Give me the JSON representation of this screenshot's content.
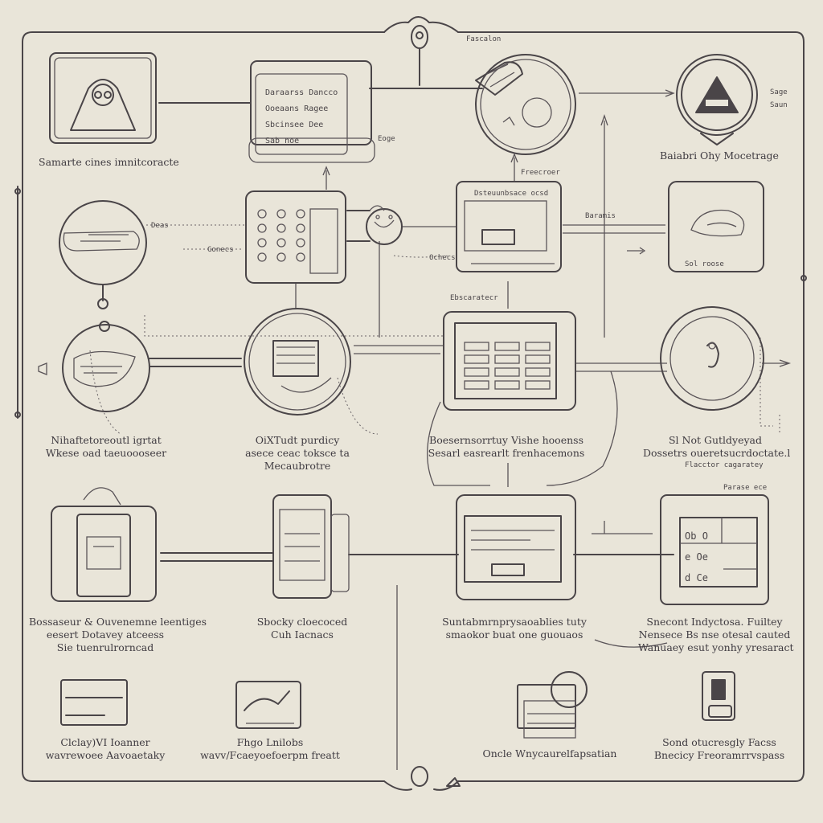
{
  "header": {
    "top_tag": "Fascalon"
  },
  "nodes": [
    {
      "id": "n1",
      "caption": [
        "Samarte cines imnitcoracte"
      ]
    },
    {
      "id": "n2",
      "caption": [],
      "panel_text": [
        "Daraarss",
        "Dancco",
        "Ooeaans",
        "Ragee",
        "Sbcinsee",
        "Dee",
        "Sab noe"
      ],
      "side_tag": "Eoge"
    },
    {
      "id": "n3",
      "caption": []
    },
    {
      "id": "n4",
      "caption": [
        "Baiabri Ohy Mocetrage"
      ],
      "side_tags": [
        "Sage",
        "Saun"
      ]
    },
    {
      "id": "n5",
      "caption": [],
      "side_tag": "Deas"
    },
    {
      "id": "n6",
      "caption": [],
      "side_tag": "Gonecs"
    },
    {
      "id": "n7",
      "caption": [],
      "top_tag": "Freecroer",
      "side_tag": "Ochecs",
      "header_text": "Dsteuunbsace ocsd"
    },
    {
      "id": "n8",
      "caption": [],
      "side_tag": "Baramis",
      "bottom_tag": "Sol roose"
    },
    {
      "id": "n9",
      "caption": [
        "Nihaftetoreoutl igrtat",
        "Wkese oad taeuoooseer"
      ]
    },
    {
      "id": "n10",
      "caption": [
        "OiXTudt purdicy",
        "asece ceac toksce ta",
        "Mecaubrotre"
      ]
    },
    {
      "id": "n11",
      "caption": [
        "Boesernsorrtuy Vishe hooenss",
        "Sesarl easrearlt frenhacemons"
      ],
      "top_tag": "Ebscaratecr"
    },
    {
      "id": "n12",
      "caption": [
        "Sl Not Gutldyeyad",
        "Dossetrs oueretsucrdoctate.l"
      ],
      "sub_tag": "Flacctor cagaratey"
    },
    {
      "id": "n13",
      "caption": [
        "Bossaseur & Ouvenemne leentiges",
        "eesert Dotavey atceess",
        "Sie tuenrulrorncad"
      ]
    },
    {
      "id": "n14",
      "caption": [
        "Sbocky cloecoced",
        "Cuh Iacnacs"
      ]
    },
    {
      "id": "n15",
      "caption": [
        "Suntabmrnprysaoablies tuty",
        "smaokor buat one guouaos"
      ]
    },
    {
      "id": "n16",
      "caption": [
        "Snecont Indyctosa. Fuiltey",
        "Nensece Bs nse otesal cauted",
        "Wanuaey esut yonhy yresaract"
      ],
      "top_tag": "Parase ece",
      "panel_text": [
        "Ob",
        "O",
        "e",
        "Oe",
        "d",
        "Ce"
      ]
    },
    {
      "id": "n17",
      "caption": [
        "Clclay)VI Ioanner",
        "wavrewoee Aavoaetaky"
      ]
    },
    {
      "id": "n18",
      "caption": [
        "Fhgo Lnilobs",
        "wavv/Fcaeyoefoerpm freatt"
      ]
    },
    {
      "id": "n19",
      "caption": [
        "Oncle Wnycaurelfapsatian"
      ]
    },
    {
      "id": "n20",
      "caption": [
        "Sond otucresgly Facss",
        "Bnecicy Freoramrrvspass"
      ]
    }
  ],
  "colors": {
    "ink": "#4a4548",
    "paper": "#e9e5d9"
  }
}
